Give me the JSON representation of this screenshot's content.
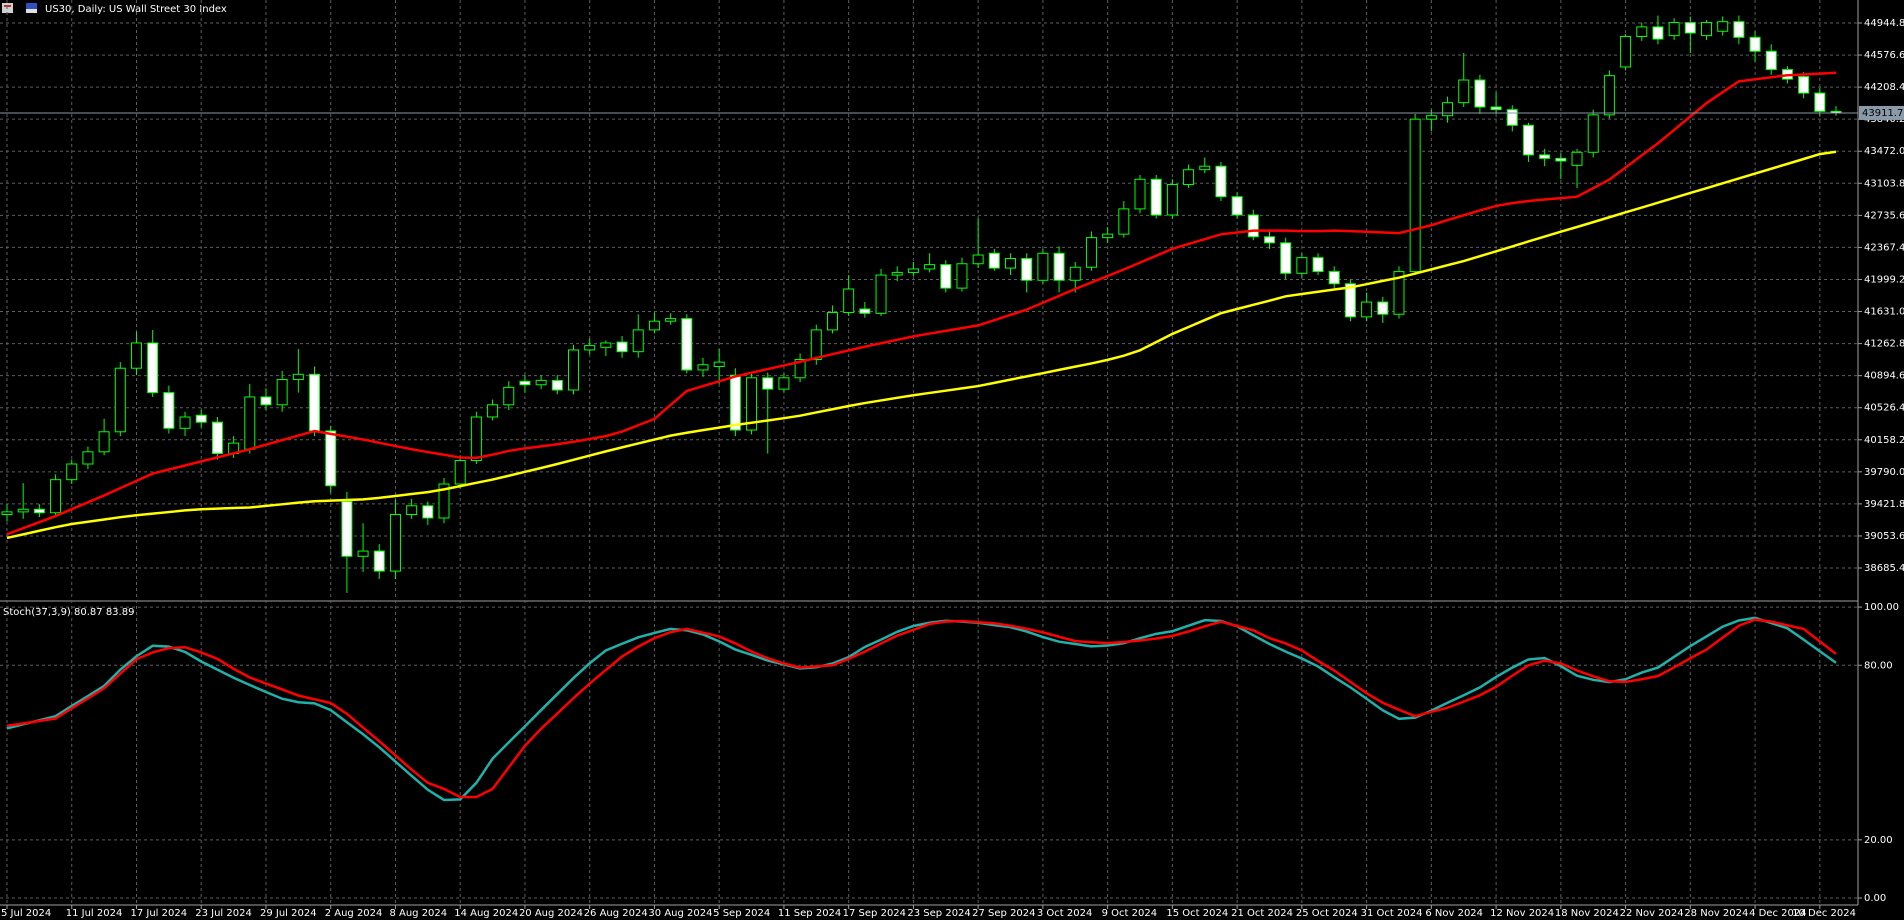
{
  "chart_data": [
    {
      "type": "candlestick",
      "title": "US30, Daily:  US Wall Street 30 Index",
      "categories": [
        "5 Jul 2024",
        null,
        null,
        null,
        "11 Jul 2024",
        null,
        null,
        null,
        "17 Jul 2024",
        null,
        null,
        null,
        "23 Jul 2024",
        null,
        null,
        null,
        "29 Jul 2024",
        null,
        null,
        null,
        "2 Aug 2024",
        null,
        null,
        null,
        "8 Aug 2024",
        null,
        null,
        null,
        "14 Aug 2024",
        null,
        null,
        null,
        "20 Aug 2024",
        null,
        null,
        null,
        "26 Aug 2024",
        null,
        null,
        null,
        "30 Aug 2024",
        null,
        null,
        null,
        "5 Sep 2024",
        null,
        null,
        null,
        "11 Sep 2024",
        null,
        null,
        null,
        "17 Sep 2024",
        null,
        null,
        null,
        "23 Sep 2024",
        null,
        null,
        null,
        "27 Sep 2024",
        null,
        null,
        null,
        "3 Oct 2024",
        null,
        null,
        null,
        "9 Oct 2024",
        null,
        null,
        null,
        "15 Oct 2024",
        null,
        null,
        null,
        "21 Oct 2024",
        null,
        null,
        null,
        "25 Oct 2024",
        null,
        null,
        null,
        "31 Oct 2024",
        null,
        null,
        null,
        "6 Nov 2024",
        null,
        null,
        null,
        "12 Nov 2024",
        null,
        null,
        null,
        "18 Nov 2024",
        null,
        null,
        null,
        "22 Nov 2024",
        null,
        null,
        null,
        "28 Nov 2024",
        null,
        null,
        null,
        "4 Dec 2024",
        null,
        null,
        null,
        "10 Dec 2024",
        null
      ],
      "open": [
        39300,
        39330,
        39360,
        39320,
        39700,
        39880,
        40020,
        40250,
        40980,
        41270,
        40700,
        40290,
        40440,
        40360,
        40000,
        40050,
        40650,
        40560,
        40850,
        40910,
        40260,
        39450,
        38820,
        38880,
        38650,
        39300,
        39400,
        39260,
        39650,
        39920,
        40420,
        40560,
        40830,
        40790,
        40840,
        40730,
        41190,
        41220,
        41280,
        41170,
        41420,
        41520,
        41550,
        40960,
        41000,
        40900,
        40270,
        40870,
        40740,
        40870,
        41080,
        41420,
        41620,
        41660,
        41610,
        42050,
        42080,
        42120,
        42170,
        41900,
        42180,
        42300,
        42130,
        42240,
        41990,
        42300,
        41990,
        42140,
        42480,
        42520,
        42810,
        43150,
        42740,
        43090,
        43260,
        43300,
        42950,
        42740,
        42490,
        42420,
        42070,
        42250,
        42090,
        41950,
        41570,
        41740,
        41600,
        42090,
        43840,
        43880,
        44030,
        44290,
        43980,
        43950,
        43770,
        43430,
        43390,
        43310,
        43460,
        43890,
        44440,
        44790,
        44900,
        44800,
        44950,
        44800,
        44850,
        44960,
        44780,
        44620,
        44410,
        44330,
        44140,
        43930
      ],
      "high": [
        39420,
        39660,
        39420,
        39760,
        39930,
        40080,
        40400,
        41050,
        41400,
        41420,
        40780,
        40480,
        40500,
        40420,
        40200,
        40800,
        40750,
        40950,
        41200,
        41000,
        40320,
        39560,
        39200,
        38960,
        39470,
        39480,
        39450,
        39720,
        39980,
        40480,
        40620,
        40830,
        40900,
        40900,
        40900,
        41250,
        41320,
        41300,
        41350,
        41600,
        41620,
        41610,
        41600,
        41100,
        41200,
        40980,
        40920,
        40930,
        40920,
        41150,
        41480,
        41700,
        42050,
        41740,
        42120,
        42150,
        42200,
        42300,
        42220,
        42250,
        42700,
        42350,
        42300,
        42300,
        42350,
        42380,
        42200,
        42550,
        42600,
        42900,
        43200,
        43200,
        43150,
        43320,
        43400,
        43350,
        43000,
        42800,
        42550,
        42480,
        42300,
        42300,
        42150,
        42000,
        41850,
        41800,
        42150,
        43900,
        43950,
        44100,
        44600,
        44350,
        44150,
        44000,
        43800,
        43500,
        43450,
        43500,
        43950,
        44400,
        44820,
        44950,
        45030,
        45000,
        45020,
        44980,
        45020,
        45030,
        44850,
        44700,
        44450,
        44380,
        44200,
        43990
      ],
      "low": [
        39220,
        39250,
        39270,
        39290,
        39650,
        39820,
        39980,
        40200,
        40900,
        40650,
        40230,
        40200,
        40300,
        39930,
        39950,
        40000,
        40500,
        40480,
        40700,
        40200,
        39550,
        38400,
        38640,
        38560,
        38560,
        39250,
        39180,
        39200,
        39600,
        39880,
        40380,
        40500,
        40700,
        40740,
        40680,
        40680,
        41140,
        41120,
        41100,
        41100,
        41380,
        41480,
        40920,
        40880,
        40800,
        40200,
        40220,
        40000,
        40700,
        40820,
        41020,
        41380,
        41580,
        41560,
        41580,
        41980,
        42040,
        42080,
        41850,
        41860,
        42130,
        42100,
        42050,
        41850,
        41950,
        41850,
        41850,
        42100,
        42420,
        42480,
        42760,
        42700,
        42700,
        43050,
        43220,
        42900,
        42700,
        42450,
        42350,
        42000,
        42020,
        42050,
        41900,
        41520,
        41520,
        41500,
        41550,
        42050,
        43700,
        43800,
        43980,
        43900,
        43900,
        43700,
        43350,
        43300,
        43150,
        43050,
        43400,
        43850,
        44400,
        44740,
        44700,
        44750,
        44600,
        44750,
        44800,
        44700,
        44500,
        44350,
        44250,
        44080,
        43880,
        43880
      ],
      "close": [
        39330,
        39360,
        39320,
        39700,
        39880,
        40020,
        40250,
        40980,
        41270,
        40700,
        40290,
        40420,
        40360,
        40000,
        40120,
        40650,
        40560,
        40850,
        40910,
        40260,
        39630,
        38820,
        38880,
        38650,
        39300,
        39400,
        39260,
        39650,
        39920,
        40420,
        40560,
        40760,
        40790,
        40840,
        40730,
        41190,
        41240,
        41270,
        41170,
        41420,
        41520,
        41550,
        40960,
        41020,
        41050,
        40270,
        40870,
        40740,
        40870,
        41080,
        41420,
        41620,
        41890,
        41610,
        42050,
        42080,
        42120,
        42170,
        41900,
        42180,
        42280,
        42130,
        42240,
        41990,
        42300,
        41990,
        42140,
        42480,
        42520,
        42810,
        43150,
        42740,
        43090,
        43260,
        43300,
        42950,
        42740,
        42490,
        42420,
        42070,
        42250,
        42090,
        41950,
        41570,
        41740,
        41600,
        42090,
        43840,
        43880,
        44030,
        44290,
        43980,
        43950,
        43770,
        43430,
        43390,
        43360,
        43460,
        43890,
        44340,
        44790,
        44900,
        44760,
        44950,
        44830,
        44950,
        44960,
        44780,
        44620,
        44410,
        44300,
        44140,
        43930,
        43911.7
      ],
      "wick_color": "#00ff00",
      "up_color": "#000000",
      "down_color": "#ffffff",
      "overlays": [
        {
          "color": "#ff0000",
          "values": [
            39073,
            39143,
            39212,
            39282,
            39361,
            39440,
            39519,
            39603,
            39686,
            39770,
            39817,
            39863,
            39910,
            39956,
            40003,
            40049,
            40102,
            40154,
            40207,
            40259,
            40226,
            40194,
            40161,
            40124,
            40086,
            40049,
            40017,
            39986,
            39954,
            39950,
            39987,
            40030,
            40060,
            40083,
            40107,
            40135,
            40168,
            40200,
            40253,
            40325,
            40398,
            40558,
            40719,
            40775,
            40830,
            40886,
            40928,
            40970,
            41012,
            41054,
            41098,
            41141,
            41185,
            41227,
            41267,
            41306,
            41346,
            41378,
            41409,
            41441,
            41472,
            41532,
            41593,
            41653,
            41732,
            41811,
            41890,
            41965,
            42039,
            42114,
            42193,
            42272,
            42351,
            42407,
            42462,
            42518,
            42539,
            42560,
            42560,
            42560,
            42555,
            42555,
            42560,
            42555,
            42547,
            42539,
            42532,
            42577,
            42622,
            42681,
            42736,
            42792,
            42844,
            42876,
            42900,
            42918,
            42934,
            42950,
            43048,
            43146,
            43285,
            43425,
            43564,
            43717,
            43871,
            44024,
            44150,
            44275,
            44298,
            44322,
            44345,
            44354,
            44364,
            44373
          ]
        },
        {
          "color": "#ffff00",
          "values": [
            39031,
            39072,
            39113,
            39154,
            39191,
            39217,
            39243,
            39269,
            39291,
            39310,
            39328,
            39347,
            39360,
            39367,
            39374,
            39380,
            39399,
            39417,
            39436,
            39452,
            39459,
            39467,
            39474,
            39491,
            39513,
            39535,
            39557,
            39589,
            39626,
            39664,
            39701,
            39745,
            39790,
            39834,
            39880,
            39928,
            39977,
            40025,
            40071,
            40116,
            40161,
            40206,
            40239,
            40269,
            40298,
            40328,
            40354,
            40380,
            40406,
            40435,
            40472,
            40509,
            40546,
            40580,
            40610,
            40640,
            40670,
            40696,
            40722,
            40749,
            40775,
            40812,
            40849,
            40886,
            40923,
            40961,
            40998,
            41035,
            41076,
            41124,
            41186,
            41280,
            41374,
            41453,
            41533,
            41612,
            41660,
            41708,
            41756,
            41806,
            41832,
            41858,
            41884,
            41908,
            41945,
            41983,
            42020,
            42067,
            42115,
            42163,
            42211,
            42267,
            42323,
            42379,
            42436,
            42492,
            42548,
            42602,
            42658,
            42714,
            42770,
            42825,
            42881,
            42937,
            42993,
            43048,
            43104,
            43160,
            43216,
            43271,
            43327,
            43383,
            43439,
            43466
          ]
        }
      ],
      "last_price": 43911.7,
      "last_price_color": "#8a9aa8",
      "ylim": [
        38341,
        45209
      ],
      "yticks": [
        38685.4,
        39053.6,
        39421.8,
        {
          "value": 39790,
          "label": "39790.0"
        },
        40158.2,
        40526.4,
        40894.6,
        41262.8,
        {
          "value": 41631,
          "label": "41631.0"
        },
        41999.2,
        42367.4,
        42735.6,
        43103.8,
        {
          "value": 43472,
          "label": "43472.0"
        },
        43840.2,
        44208.4,
        44576.6,
        44944.8
      ],
      "grid": true
    },
    {
      "type": "line",
      "title": "Stoch(37,3,9) 80.87 83.89",
      "series": [
        {
          "color": "#20b2aa",
          "values": [
            58.3,
            59.7,
            61.1,
            62.5,
            66.0,
            69.4,
            72.9,
            78.5,
            83.1,
            86.7,
            86.4,
            84.6,
            81.3,
            78.5,
            75.7,
            73.2,
            70.8,
            68.5,
            67.3,
            66.9,
            64.6,
            60.4,
            56.3,
            51.8,
            46.9,
            42.0,
            37.2,
            33.7,
            33.9,
            39.6,
            47.9,
            53.5,
            59.0,
            64.6,
            70.1,
            75.6,
            80.7,
            85.1,
            87.4,
            89.6,
            91.1,
            92.5,
            92.0,
            90.6,
            88.2,
            85.4,
            83.6,
            81.6,
            80.3,
            78.9,
            79.3,
            80.6,
            82.8,
            86.3,
            88.8,
            91.5,
            93.5,
            94.6,
            95.3,
            95.0,
            94.6,
            93.8,
            93.1,
            91.6,
            89.7,
            88.1,
            87.3,
            86.5,
            86.8,
            87.6,
            89.3,
            90.8,
            91.7,
            93.6,
            95.5,
            95.2,
            93.4,
            90.3,
            87.3,
            84.7,
            82.3,
            79.6,
            75.9,
            72.4,
            68.5,
            64.5,
            61.6,
            62.0,
            64.4,
            67.1,
            69.7,
            72.4,
            76.0,
            79.2,
            82.0,
            82.5,
            79.7,
            76.4,
            75.0,
            74.2,
            75.2,
            77.5,
            79.2,
            82.9,
            86.6,
            89.9,
            93.3,
            95.4,
            96.3,
            94.5,
            92.7,
            88.8,
            84.8,
            80.87
          ]
        },
        {
          "color": "#ff0000",
          "values": [
            59.2,
            60.0,
            60.9,
            61.7,
            65.2,
            68.6,
            72.1,
            77.1,
            82.1,
            84.4,
            85.9,
            86.2,
            84.4,
            82.2,
            78.8,
            75.8,
            73.7,
            71.7,
            69.6,
            68.3,
            67.0,
            63.3,
            58.6,
            53.9,
            49.0,
            44.1,
            39.6,
            37.5,
            34.7,
            34.7,
            37.5,
            44.9,
            52.3,
            58.2,
            63.4,
            68.7,
            73.7,
            78.4,
            83.0,
            86.4,
            89.3,
            91.4,
            92.5,
            91.2,
            89.9,
            87.5,
            84.7,
            82.4,
            80.6,
            79.2,
            79.6,
            80.0,
            82.2,
            84.7,
            87.5,
            90.2,
            92.2,
            94.2,
            95.0,
            95.2,
            94.8,
            94.4,
            93.6,
            92.5,
            91.3,
            89.8,
            88.3,
            87.9,
            87.6,
            88.0,
            88.5,
            89.2,
            90.1,
            91.6,
            93.4,
            95.0,
            93.5,
            92.0,
            89.3,
            87.5,
            85.1,
            81.5,
            78.2,
            74.3,
            70.4,
            67.1,
            64.7,
            62.5,
            64.0,
            65.4,
            67.5,
            69.7,
            72.6,
            76.4,
            80.0,
            81.6,
            80.6,
            78.2,
            76.2,
            74.5,
            74.3,
            75.2,
            76.3,
            79.3,
            82.4,
            85.4,
            89.5,
            93.6,
            95.7,
            95.0,
            93.7,
            92.5,
            88.2,
            83.89
          ]
        }
      ],
      "ylim": [
        -2.4,
        101.4
      ],
      "yticks": [
        {
          "value": 0,
          "label": "0.00"
        },
        {
          "value": 20,
          "label": "20.00"
        },
        {
          "value": 80,
          "label": "80.00"
        },
        {
          "value": 100,
          "label": "100.00"
        }
      ],
      "grid": true
    }
  ]
}
